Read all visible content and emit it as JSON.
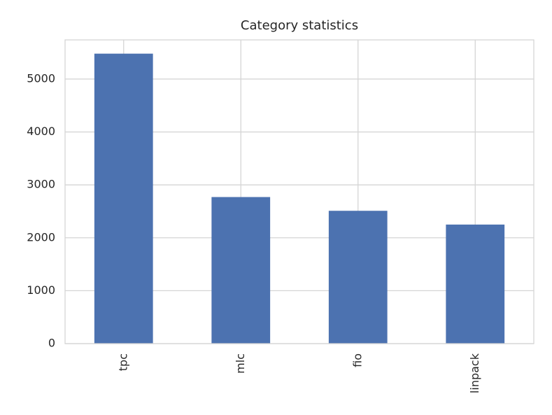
{
  "chart_data": {
    "type": "bar",
    "title": "Category statistics",
    "categories": [
      "tpc",
      "mlc",
      "fio",
      "linpack"
    ],
    "values": [
      5480,
      2770,
      2510,
      2250
    ],
    "color": "#4c72b0",
    "ylim": [
      0,
      5740
    ],
    "yticks": [
      0,
      1000,
      2000,
      3000,
      4000,
      5000
    ],
    "grid": true
  }
}
